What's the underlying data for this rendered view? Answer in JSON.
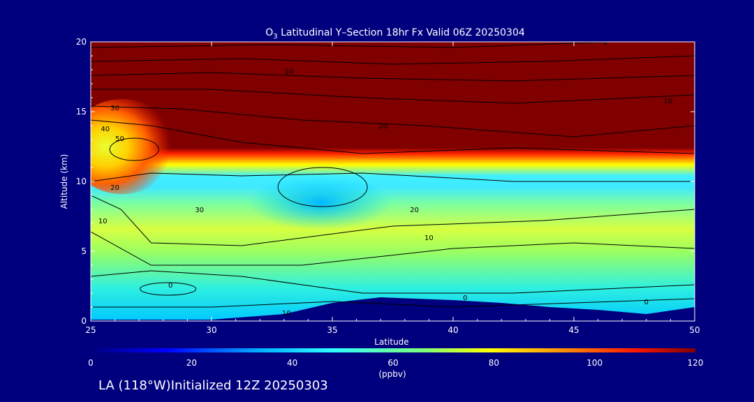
{
  "chart_data": {
    "type": "heatmap",
    "title_prefix": "O",
    "title_subscript": "3",
    "title_rest": " Latitudinal Y–Section 18hr  Fx Valid 06Z 20250304",
    "xlabel": "Latitude",
    "ylabel": "Altitude (km)",
    "xlim": [
      25,
      50
    ],
    "ylim": [
      0,
      20
    ],
    "xticks": [
      "25",
      "30",
      "35",
      "40",
      "45",
      "50"
    ],
    "yticks": [
      "0",
      "5",
      "10",
      "15",
      "20"
    ],
    "colorbar": {
      "label": "(ppbv)",
      "range": [
        0,
        120
      ],
      "ticks": [
        "0",
        "20",
        "40",
        "60",
        "80",
        "100",
        "120"
      ],
      "colors": [
        "#00007f",
        "#0000ff",
        "#00b0ff",
        "#30ffff",
        "#7dff7a",
        "#ffff00",
        "#ff9000",
        "#ff1800",
        "#800000"
      ]
    },
    "terrain_km": [
      [
        25,
        0.1
      ],
      [
        30,
        0.1
      ],
      [
        33,
        0.5
      ],
      [
        35,
        1.3
      ],
      [
        37,
        1.7
      ],
      [
        40,
        1.5
      ],
      [
        42,
        1.3
      ],
      [
        44,
        1.0
      ],
      [
        46,
        0.8
      ],
      [
        48,
        0.5
      ],
      [
        50,
        1.0
      ]
    ],
    "contour_labels": [
      {
        "text": "0",
        "x": 46.3,
        "y": 19.8
      },
      {
        "text": "10",
        "x": 33.2,
        "y": 17.7
      },
      {
        "text": "10",
        "x": 48.9,
        "y": 15.6
      },
      {
        "text": "30",
        "x": 26.0,
        "y": 15.1
      },
      {
        "text": "20",
        "x": 37.1,
        "y": 13.8
      },
      {
        "text": "40",
        "x": 25.6,
        "y": 13.6
      },
      {
        "text": "50",
        "x": 26.2,
        "y": 12.9
      },
      {
        "text": "20",
        "x": 26.0,
        "y": 9.4
      },
      {
        "text": "30",
        "x": 29.5,
        "y": 7.8
      },
      {
        "text": "10",
        "x": 25.5,
        "y": 7.0
      },
      {
        "text": "20",
        "x": 38.4,
        "y": 7.8
      },
      {
        "text": "10",
        "x": 39.0,
        "y": 5.8
      },
      {
        "text": "0",
        "x": 28.3,
        "y": 2.4
      },
      {
        "text": "10",
        "x": 33.1,
        "y": 0.4
      },
      {
        "text": "0",
        "x": 40.5,
        "y": 1.5
      },
      {
        "text": "0",
        "x": 48.0,
        "y": 1.2
      }
    ]
  },
  "footer": {
    "location": "LA (118°W)",
    "init": "Initialized 12Z 20250303"
  }
}
